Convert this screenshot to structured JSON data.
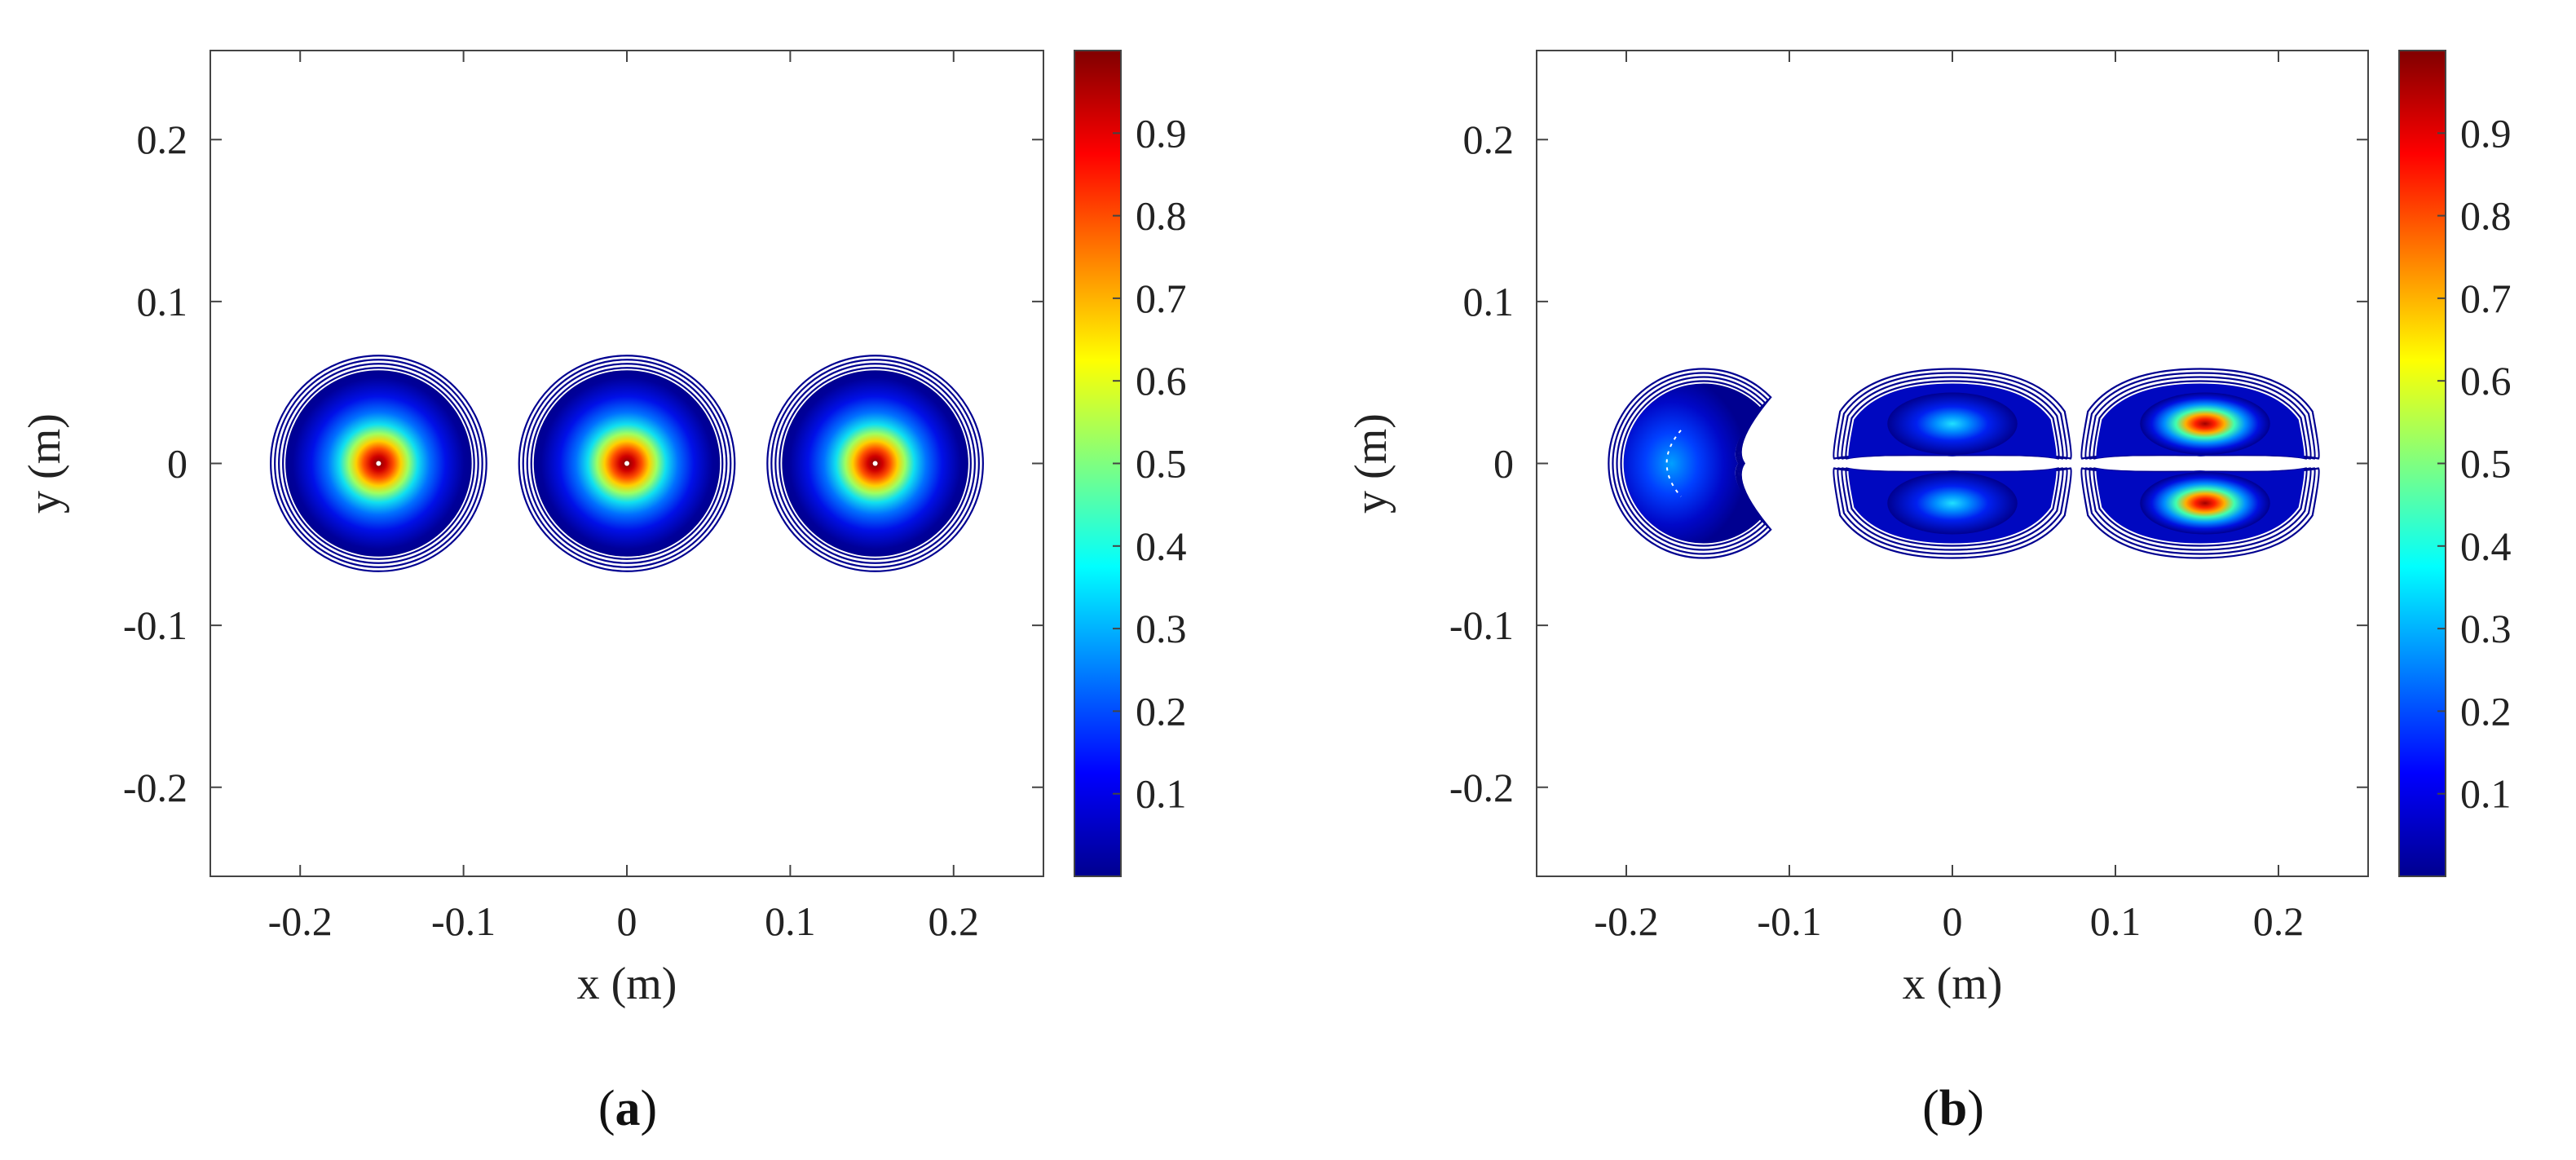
{
  "chart_data": [
    {
      "type": "heatmap",
      "panel_label": "a",
      "xlabel": "x (m)",
      "ylabel": "y (m)",
      "xlim": [
        -0.255,
        0.255
      ],
      "ylim": [
        -0.255,
        0.255
      ],
      "xticks": [
        -0.2,
        -0.1,
        0,
        0.1,
        0.2
      ],
      "xtick_labels": [
        "-0.2",
        "-0.1",
        "0",
        "0.1",
        "0.2"
      ],
      "yticks": [
        -0.2,
        -0.1,
        0,
        0.1,
        0.2
      ],
      "ytick_labels": [
        "-0.2",
        "-0.1",
        "0",
        "0.1",
        "0.2"
      ],
      "colorbar": {
        "range": [
          0,
          1
        ],
        "ticks": [
          0.1,
          0.2,
          0.3,
          0.4,
          0.5,
          0.6,
          0.7,
          0.8,
          0.9
        ],
        "tick_labels": [
          "0.1",
          "0.2",
          "0.3",
          "0.4",
          "0.5",
          "0.6",
          "0.7",
          "0.8",
          "0.9"
        ],
        "colormap": "jet"
      },
      "blobs": [
        {
          "center": [
            -0.152,
            0.0
          ],
          "radius": 0.066,
          "peak": 1.0,
          "shape": "circle"
        },
        {
          "center": [
            0.0,
            0.0
          ],
          "radius": 0.066,
          "peak": 1.0,
          "shape": "circle"
        },
        {
          "center": [
            0.152,
            0.0
          ],
          "radius": 0.066,
          "peak": 1.0,
          "shape": "circle"
        }
      ]
    },
    {
      "type": "heatmap",
      "panel_label": "b",
      "xlabel": "x (m)",
      "ylabel": "y (m)",
      "xlim": [
        -0.255,
        0.255
      ],
      "ylim": [
        -0.255,
        0.255
      ],
      "xticks": [
        -0.2,
        -0.1,
        0,
        0.1,
        0.2
      ],
      "xtick_labels": [
        "-0.2",
        "-0.1",
        "0",
        "0.1",
        "0.2"
      ],
      "yticks": [
        -0.2,
        -0.1,
        0,
        0.1,
        0.2
      ],
      "ytick_labels": [
        "-0.2",
        "-0.1",
        "0",
        "0.1",
        "0.2"
      ],
      "colorbar": {
        "range": [
          0,
          1
        ],
        "ticks": [
          0.1,
          0.2,
          0.3,
          0.4,
          0.5,
          0.6,
          0.7,
          0.8,
          0.9
        ],
        "tick_labels": [
          "0.1",
          "0.2",
          "0.3",
          "0.4",
          "0.5",
          "0.6",
          "0.7",
          "0.8",
          "0.9"
        ],
        "colormap": "jet"
      },
      "blobs": [
        {
          "center": [
            -0.152,
            0.0
          ],
          "radius": 0.058,
          "peak": 0.2,
          "shape": "crescent"
        },
        {
          "center": [
            0.0,
            0.0
          ],
          "radius": 0.058,
          "peak": 0.35,
          "shape": "double-lobe"
        },
        {
          "center": [
            0.152,
            0.0
          ],
          "radius": 0.058,
          "peak": 0.97,
          "shape": "double-lobe"
        }
      ]
    }
  ]
}
